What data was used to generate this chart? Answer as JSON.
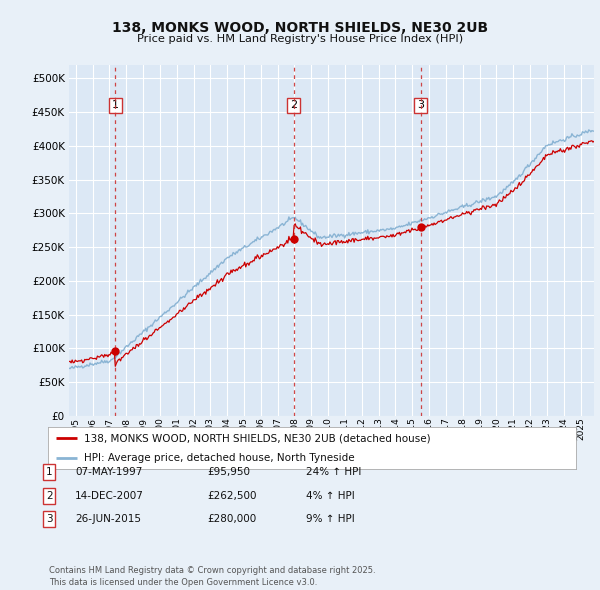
{
  "title": "138, MONKS WOOD, NORTH SHIELDS, NE30 2UB",
  "subtitle": "Price paid vs. HM Land Registry's House Price Index (HPI)",
  "legend_label_red": "138, MONKS WOOD, NORTH SHIELDS, NE30 2UB (detached house)",
  "legend_label_blue": "HPI: Average price, detached house, North Tyneside",
  "footnote": "Contains HM Land Registry data © Crown copyright and database right 2025.\nThis data is licensed under the Open Government Licence v3.0.",
  "transactions": [
    {
      "label": "1",
      "date": "07-MAY-1997",
      "price": 95950,
      "hpi_pct": "24%",
      "direction": "↑"
    },
    {
      "label": "2",
      "date": "14-DEC-2007",
      "price": 262500,
      "hpi_pct": "4%",
      "direction": "↑"
    },
    {
      "label": "3",
      "date": "26-JUN-2015",
      "price": 280000,
      "hpi_pct": "9%",
      "direction": "↑"
    }
  ],
  "transaction_years": [
    1997.35,
    2007.96,
    2015.49
  ],
  "ylim": [
    0,
    520000
  ],
  "yticks": [
    0,
    50000,
    100000,
    150000,
    200000,
    250000,
    300000,
    350000,
    400000,
    450000,
    500000
  ],
  "bg_color": "#e8f0f8",
  "plot_bg": "#dce8f5",
  "red_color": "#cc0000",
  "blue_color": "#8ab4d4",
  "grid_color": "#ffffff",
  "vline_color": "#cc3333",
  "xlim_left": 1994.6,
  "xlim_right": 2025.8
}
